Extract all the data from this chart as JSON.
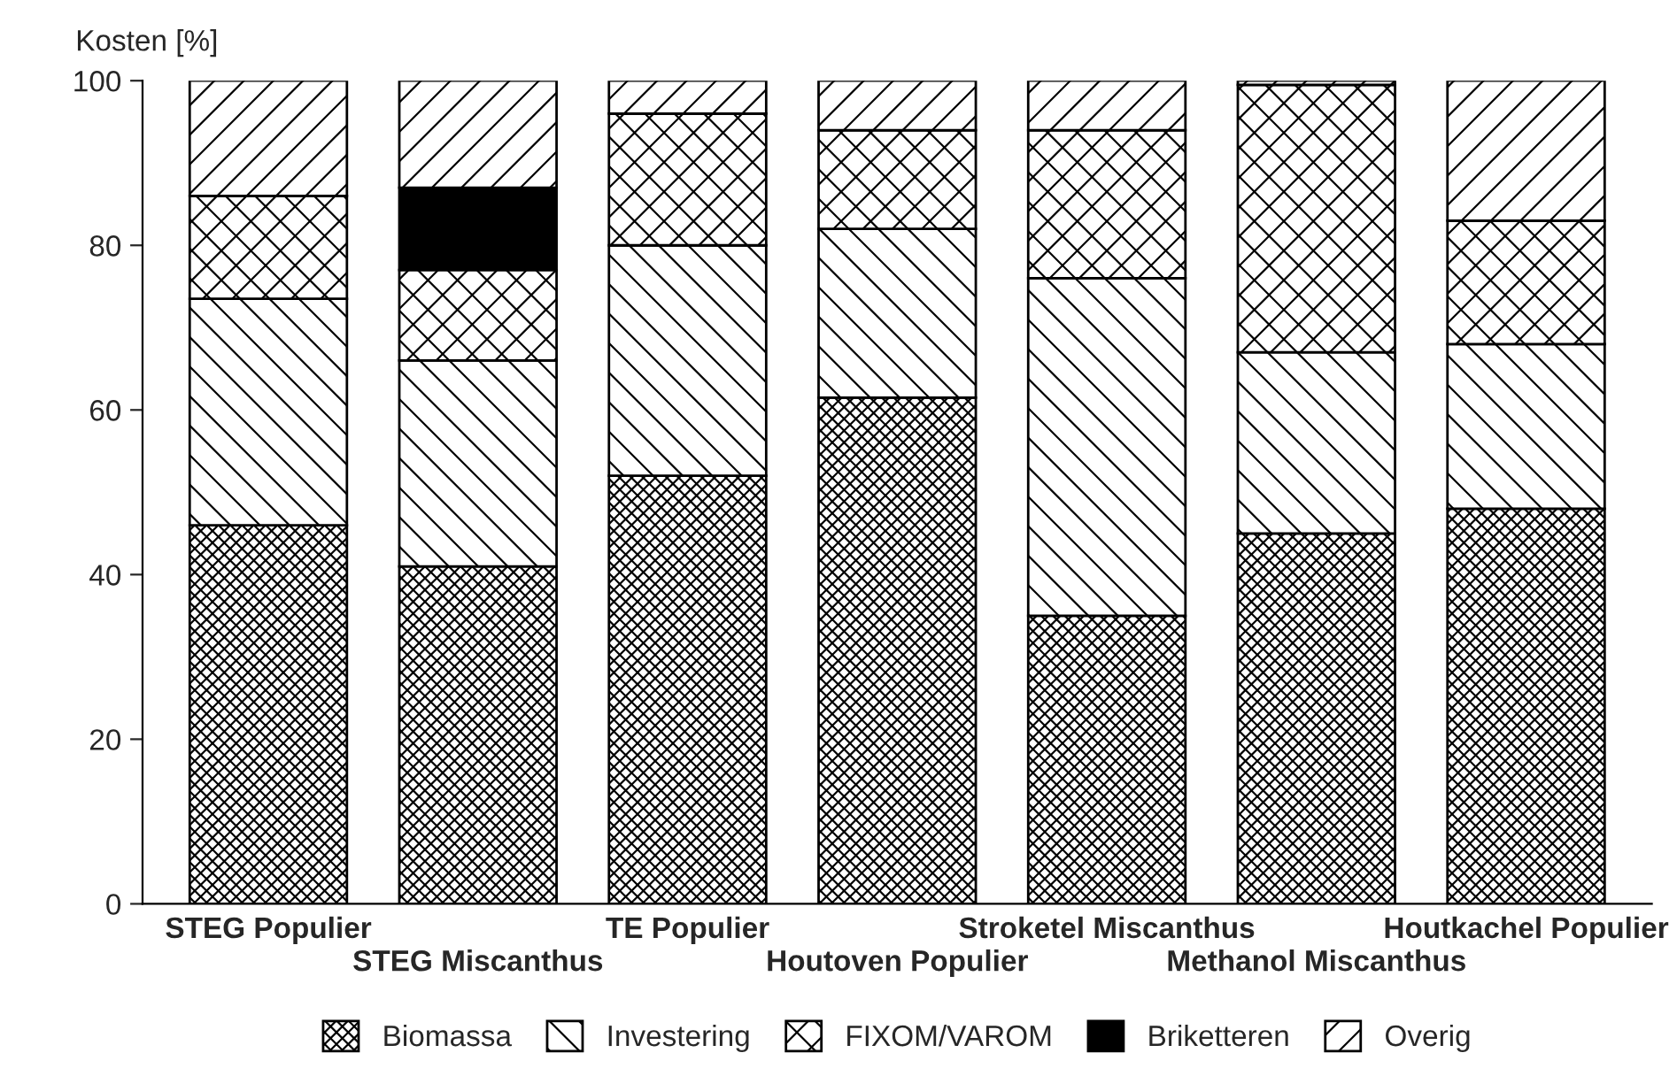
{
  "chart_data": {
    "type": "bar",
    "stacked": true,
    "ylabel": "Kosten [%]",
    "categories": [
      "STEG Populier",
      "STEG Miscanthus",
      "TE Populier",
      "Houtoven Populier",
      "Stroketel Miscanthus",
      "Methanol Miscanthus",
      "Houtkachel Populier"
    ],
    "series": [
      {
        "name": "Biomassa",
        "color": "#000000",
        "values": [
          46,
          41,
          52,
          61.5,
          35,
          45,
          48
        ]
      },
      {
        "name": "Investering",
        "color": "#000000",
        "values": [
          27.5,
          25,
          28,
          20.5,
          41,
          22,
          20
        ]
      },
      {
        "name": "FIXOM/VAROM",
        "color": "#000000",
        "values": [
          12.5,
          11,
          16,
          12,
          18,
          32.5,
          15
        ]
      },
      {
        "name": "Briketteren",
        "color": "#000000",
        "values": [
          0,
          10,
          0,
          0,
          0,
          0,
          0
        ]
      },
      {
        "name": "Overig",
        "color": "#000000",
        "values": [
          14,
          13,
          4,
          6,
          6,
          0.5,
          17
        ]
      }
    ],
    "ylim": [
      0,
      100
    ],
    "yticks": [
      0,
      20,
      40,
      60,
      80,
      100
    ],
    "grid": false,
    "legend": "bottom"
  }
}
